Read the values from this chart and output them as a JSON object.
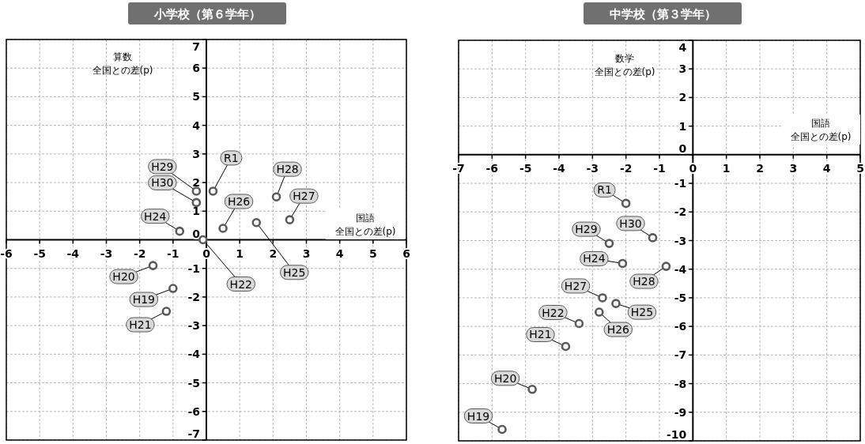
{
  "chart_data": [
    {
      "type": "scatter",
      "title": "小学校（第６学年）",
      "xlabel": "国語全国との差(p)",
      "ylabel": "算数全国との差(p)",
      "xlim": [
        -6,
        6
      ],
      "ylim": [
        -7,
        7
      ],
      "xticks": [
        -6,
        -5,
        -4,
        -3,
        -2,
        -1,
        0,
        1,
        2,
        3,
        4,
        5,
        6
      ],
      "yticks": [
        -7,
        -6,
        -5,
        -4,
        -3,
        -2,
        -1,
        0,
        1,
        2,
        3,
        4,
        5,
        6,
        7
      ],
      "grid": true,
      "marker": "circle",
      "series": [
        {
          "color": "#595959",
          "x": [
            -0.3,
            -0.3,
            0.2,
            -0.8,
            -0.1,
            0.5,
            1.5,
            2.1,
            2.5,
            -1.6,
            -1.0,
            -1.2
          ],
          "values": [
            1.7,
            1.3,
            1.7,
            0.3,
            0.0,
            0.4,
            0.6,
            1.5,
            0.7,
            -0.9,
            -1.7,
            -2.5
          ],
          "value_labels": [
            "H29",
            "H30",
            "R1",
            "H24",
            "H22",
            "H26",
            "H25",
            "H28",
            "H27",
            "H20",
            "H19",
            "H21"
          ]
        }
      ]
    },
    {
      "type": "scatter",
      "title": "中学校（第３学年）",
      "xlabel": "国語全国との差(p)",
      "ylabel": "数学全国との差(p)",
      "xlim": [
        -7,
        5
      ],
      "ylim": [
        -10,
        4
      ],
      "xticks": [
        -7,
        -6,
        -5,
        -4,
        -3,
        -2,
        -1,
        0,
        1,
        2,
        3,
        4,
        5
      ],
      "yticks": [
        -10,
        -9,
        -8,
        -7,
        -6,
        -5,
        -4,
        -3,
        -2,
        -1,
        0,
        1,
        2,
        3,
        4
      ],
      "grid": true,
      "marker": "circle",
      "series": [
        {
          "color": "#595959",
          "x": [
            -2.0,
            -1.2,
            -2.5,
            -2.1,
            -0.8,
            -2.7,
            -2.3,
            -2.8,
            -3.4,
            -3.8,
            -4.8,
            -5.7
          ],
          "values": [
            -1.7,
            -2.9,
            -3.1,
            -3.8,
            -3.9,
            -5.0,
            -5.2,
            -5.5,
            -5.9,
            -6.7,
            -8.2,
            -9.6
          ],
          "value_labels": [
            "R1",
            "H30",
            "H29",
            "H24",
            "H28",
            "H27",
            "H25",
            "H26",
            "H22",
            "H21",
            "H20",
            "H19"
          ]
        }
      ]
    }
  ]
}
